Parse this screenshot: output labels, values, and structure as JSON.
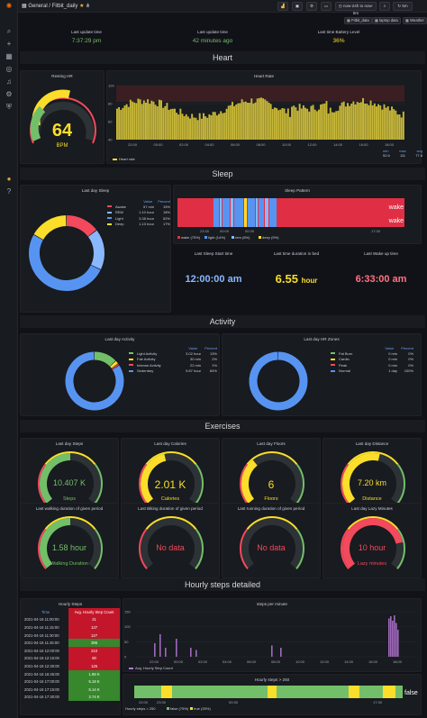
{
  "topbar": {
    "breadcrumb_root": "General",
    "breadcrumb_sep": "/",
    "breadcrumb_page": "Fitbit_daily",
    "time_range": "now-24h to now-5m",
    "refresh": "5m"
  },
  "links": [
    "Fitbit_data",
    "laptop data",
    "Weather"
  ],
  "stats": [
    {
      "title": "Last update time",
      "value": "7:37:29 pm",
      "color": "#73bf69"
    },
    {
      "title": "Last update time",
      "value": "42 minutes ago",
      "color": "#73bf69"
    },
    {
      "title": "Last time Battery Level",
      "value": "36%",
      "color": "#fade2a"
    }
  ],
  "rows": {
    "heart": "Heart",
    "sleep": "Sleep",
    "activity": "Activity",
    "exercises": "Exercises",
    "hourly": "Hourly steps detailed"
  },
  "resting_hr": {
    "title": "Resting HR",
    "value": "64",
    "unit": "BPM",
    "fraction": 0.55
  },
  "heart_rate": {
    "title": "Heart Rate",
    "y_ticks": [
      "100",
      "80",
      "60",
      "40"
    ],
    "x_ticks": [
      "22:00",
      "00:00",
      "02:00",
      "04:00",
      "06:00",
      "08:00",
      "10:00",
      "12:00",
      "14:00",
      "16:00",
      "18:00"
    ],
    "legend": "Heart rate",
    "stats_headers": [
      "min",
      "max",
      "avg"
    ],
    "stats_values": [
      "52.6",
      "111",
      "77.8"
    ]
  },
  "last_day_sleep": {
    "title": "Last day Sleep",
    "col_value": "Value",
    "col_percent": "Percent",
    "items": [
      {
        "name": "Awake",
        "value": "57 min",
        "percent": "15%",
        "color": "#f2495c"
      },
      {
        "name": "REM",
        "value": "1.10 hour",
        "percent": "18%",
        "color": "#8ab8ff"
      },
      {
        "name": "Light",
        "value": "3.38 hour",
        "percent": "52%",
        "color": "#5794f2"
      },
      {
        "name": "Deep",
        "value": "1.13 hour",
        "percent": "17%",
        "color": "#fade2a"
      }
    ]
  },
  "sleep_pattern": {
    "title": "Sleep Pattern",
    "label": "wake",
    "x_ticks": [
      "23:30",
      "00:00",
      "00:30",
      "17:30"
    ],
    "legend": [
      "wake (75%)",
      "light (14%)",
      "rem (6%)",
      "deep (5%)"
    ]
  },
  "sleep_stats": [
    {
      "title": "Last Sleep Start time",
      "value": "12:00:00 am",
      "color": "#8ab8ff"
    },
    {
      "title": "Last time duration in bed",
      "value": "6.55",
      "unit": "hour",
      "color": "#fade2a"
    },
    {
      "title": "Last Wake up time",
      "value": "6:33:00 am",
      "color": "#ff7383"
    }
  ],
  "last_day_activity": {
    "title": "Last day Activity",
    "col_value": "Value",
    "col_percent": "Percent",
    "items": [
      {
        "name": "Light Activity",
        "value": "3.02 hour",
        "percent": "13%",
        "color": "#73bf69"
      },
      {
        "name": "Fair Activity",
        "value": "30 min",
        "percent": "2%",
        "color": "#fade2a"
      },
      {
        "name": "Intense Activity",
        "value": "22 min",
        "percent": "1%",
        "color": "#f2495c"
      },
      {
        "name": "Sedentary",
        "value": "9.87 hour",
        "percent": "84%",
        "color": "#5794f2"
      }
    ]
  },
  "last_day_hr_zones": {
    "title": "Last day HR Zones",
    "col_value": "Value",
    "col_percent": "Percent",
    "items": [
      {
        "name": "Fat Burn",
        "value": "0 min",
        "percent": "0%",
        "color": "#73bf69"
      },
      {
        "name": "Cardio",
        "value": "0 min",
        "percent": "0%",
        "color": "#fade2a"
      },
      {
        "name": "Peak",
        "value": "0 min",
        "percent": "0%",
        "color": "#f2495c"
      },
      {
        "name": "Normal",
        "value": "1 day",
        "percent": "100%",
        "color": "#5794f2"
      }
    ]
  },
  "gauges1": [
    {
      "title": "Last day Steps",
      "value": "10.407 K",
      "label": "Steps",
      "color": "#73bf69",
      "fraction": 0.5
    },
    {
      "title": "Last day Calories",
      "value": "2.01 K",
      "label": "Calories",
      "color": "#fade2a",
      "fraction": 0.45
    },
    {
      "title": "Last day Floors",
      "value": "6",
      "label": "Floors",
      "color": "#fade2a",
      "fraction": 0.35
    },
    {
      "title": "Last day Distance",
      "value": "7.20 km",
      "label": "Distance",
      "color": "#fade2a",
      "fraction": 0.55
    }
  ],
  "gauges2": [
    {
      "title": "Last walking duration of given period",
      "value": "1.58 hour",
      "label": "Walking Duration",
      "color": "#73bf69",
      "fraction": 0.5
    },
    {
      "title": "Last Biking duration of given period",
      "value": "No data",
      "label": "",
      "color": "#f2495c",
      "fraction": 0
    },
    {
      "title": "Last running duration of given period",
      "value": "No data",
      "label": "",
      "color": "#f2495c",
      "fraction": 0
    },
    {
      "title": "Last day Lazy Minutes",
      "value": "10 hour",
      "label": "Lazy minutes",
      "color": "#f2495c",
      "fraction": 0.8
    }
  ],
  "hourly_steps": {
    "title": "Hourly Steps",
    "col_time": "Time",
    "col_avg": "Avg. Hourly Step Count",
    "rows": [
      {
        "time": "2021-04-16 11:00:00",
        "value": "21",
        "color": "#c4162a"
      },
      {
        "time": "2021-04-16 11:15:00",
        "value": "137",
        "color": "#c4162a"
      },
      {
        "time": "2021-04-16 11:30:00",
        "value": "127",
        "color": "#c4162a"
      },
      {
        "time": "2021-04-16 11:45:00",
        "value": "396",
        "color": "#37872d"
      },
      {
        "time": "2021-04-16 12:00:00",
        "value": "210",
        "color": "#c4162a"
      },
      {
        "time": "2021-04-16 12:15:00",
        "value": "80",
        "color": "#c4162a"
      },
      {
        "time": "2021-04-16 12:30:00",
        "value": "125",
        "color": "#c4162a"
      },
      {
        "time": "2021-04-16 16:45:00",
        "value": "1.98 K",
        "color": "#37872d"
      },
      {
        "time": "2021-04-16 17:00:00",
        "value": "5.18 K",
        "color": "#37872d"
      },
      {
        "time": "2021-04-16 17:15:00",
        "value": "5.14 K",
        "color": "#37872d"
      },
      {
        "time": "2021-04-16 17:30:00",
        "value": "2.74 K",
        "color": "#37872d"
      }
    ]
  },
  "steps_per_minute": {
    "title": "steps per minute",
    "y_ticks": [
      "150",
      "100",
      "50",
      "0"
    ],
    "x_ticks": [
      "22:00",
      "00:00",
      "02:00",
      "04:00",
      "06:00",
      "08:00",
      "10:00",
      "12:00",
      "14:00",
      "16:00",
      "18:00"
    ],
    "legend": "Avg. Hourly Step Count"
  },
  "hourly_steps_250": {
    "title": "Hourly steps > 250",
    "label": "false",
    "x_ticks": [
      "22:00",
      "23:30",
      "00:30",
      "17:30"
    ],
    "legend": [
      "Hourly steps > 250",
      "false (75%)",
      "true (25%)"
    ]
  }
}
